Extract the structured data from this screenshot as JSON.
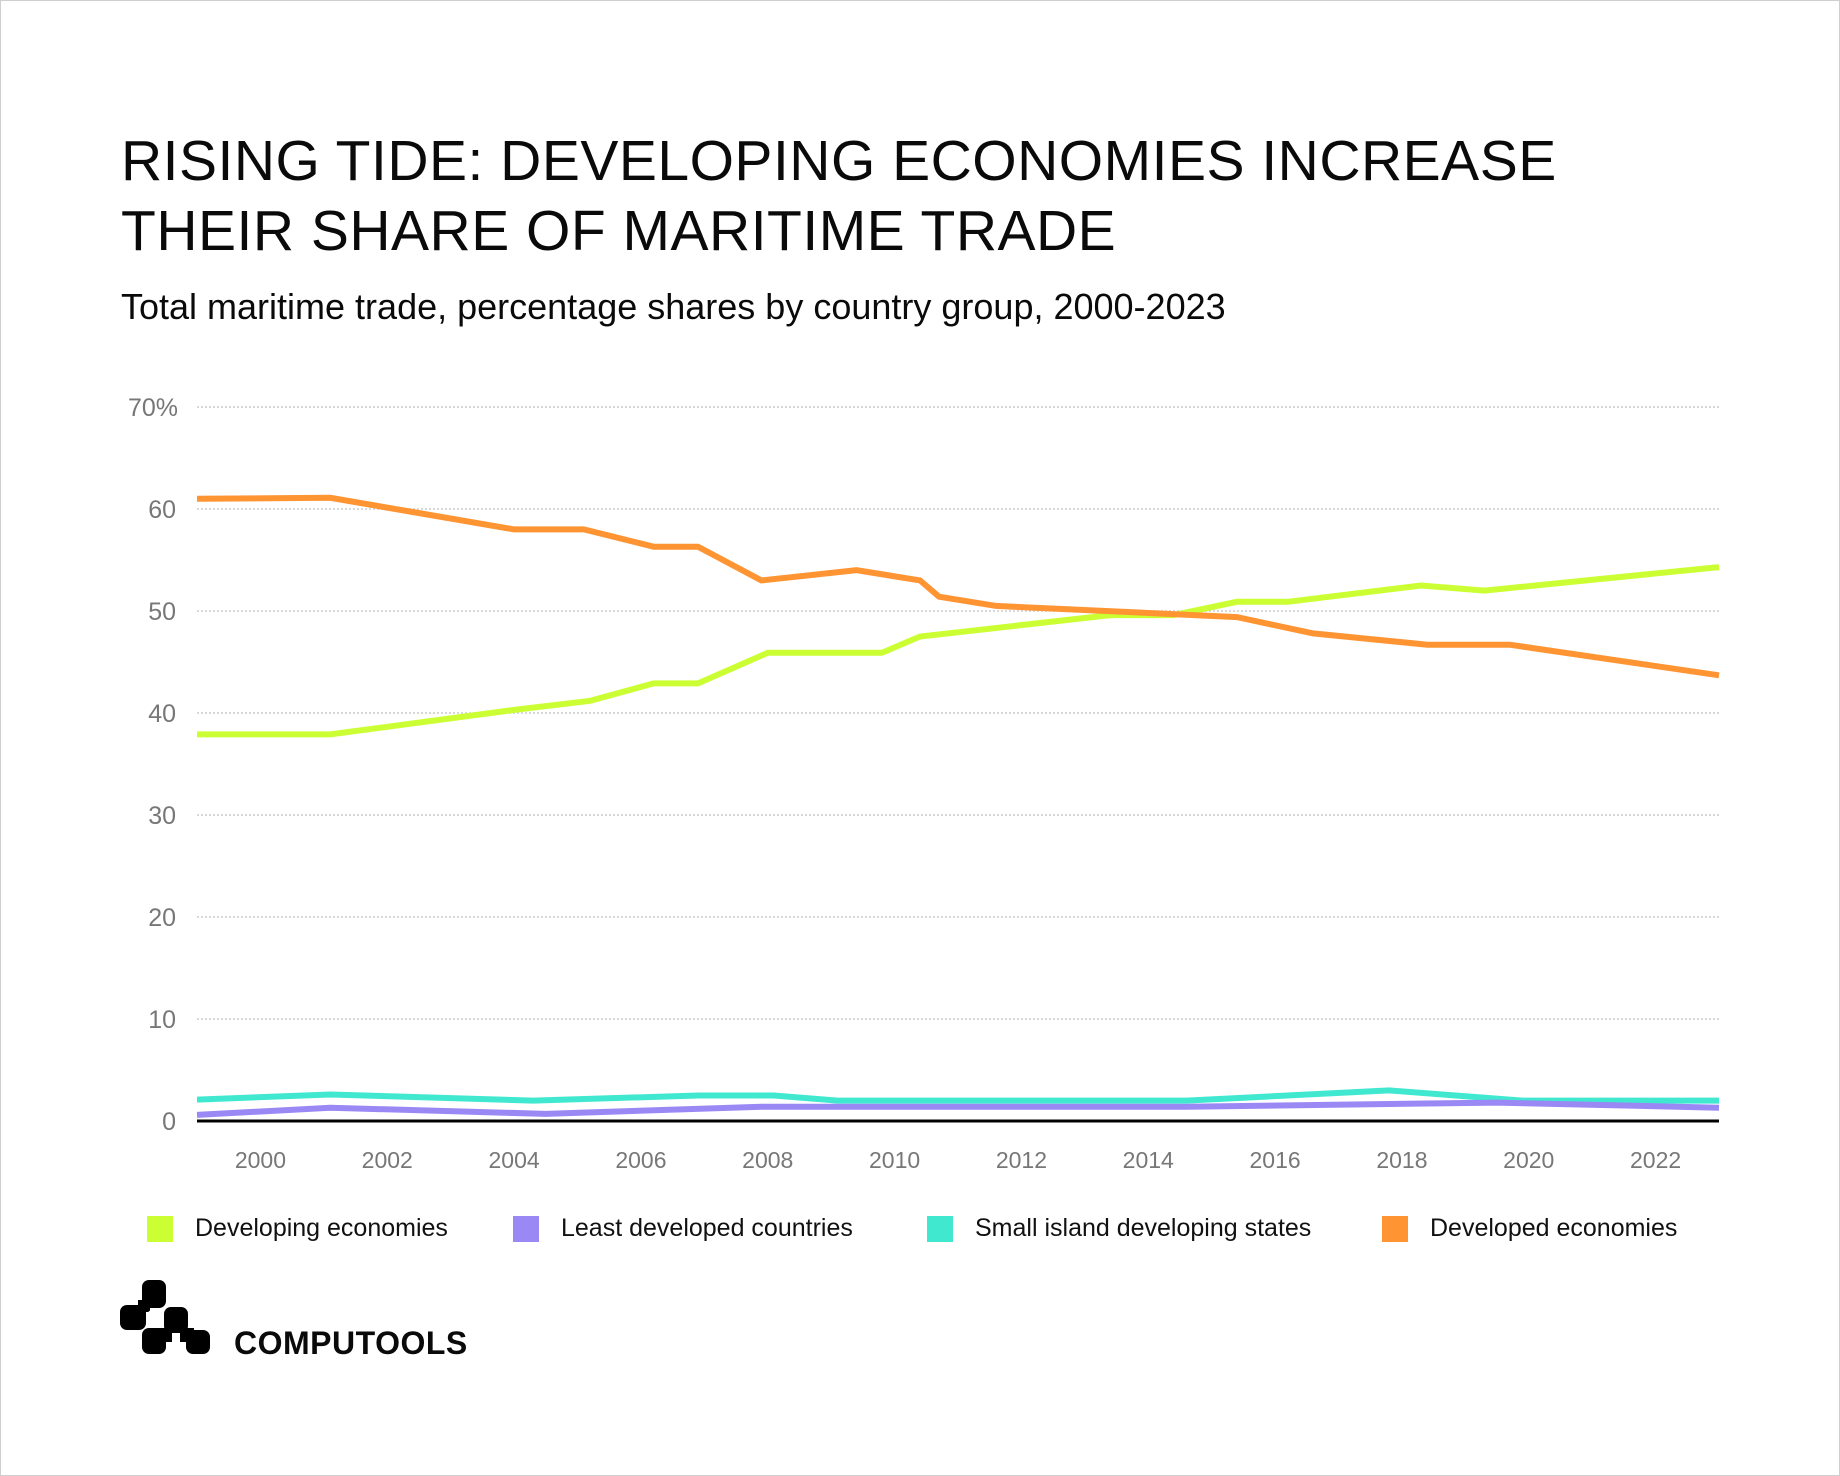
{
  "title": "RISING TIDE: DEVELOPING ECONOMIES INCREASE THEIR SHARE OF MARITIME TRADE",
  "subtitle": "Total maritime trade, percentage shares by country group, 2000-2023",
  "brand": "COMPUTOOLS",
  "chart_data": {
    "type": "line",
    "title": "RISING TIDE: DEVELOPING ECONOMIES INCREASE THEIR SHARE OF MARITIME TRADE",
    "subtitle": "Total maritime trade, percentage shares by country group, 2000-2023",
    "xlabel": "",
    "ylabel": "",
    "xlim": [
      1999,
      2023
    ],
    "ylim": [
      0,
      70
    ],
    "x_ticks": [
      "2000",
      "2002",
      "2004",
      "2006",
      "2008",
      "2010",
      "2012",
      "2014",
      "2016",
      "2018",
      "2020",
      "2022"
    ],
    "y_ticks": [
      {
        "v": 0,
        "label": "0"
      },
      {
        "v": 10,
        "label": "10"
      },
      {
        "v": 20,
        "label": "20"
      },
      {
        "v": 30,
        "label": "30"
      },
      {
        "v": 40,
        "label": "40"
      },
      {
        "v": 50,
        "label": "50"
      },
      {
        "v": 60,
        "label": "60"
      },
      {
        "v": 70,
        "label": "70%"
      }
    ],
    "grid": "horizontal dotted",
    "legend_position": "bottom",
    "series": [
      {
        "name": "Developing economies",
        "color": "#ccff33",
        "x": [
          1999,
          2001.1,
          2004,
          2005.2,
          2006.2,
          2006.9,
          2008,
          2009.8,
          2010.4,
          2013.4,
          2014.4,
          2015.4,
          2016.2,
          2018.3,
          2019.3,
          2023
        ],
        "y": [
          37.9,
          37.9,
          40.3,
          41.2,
          42.9,
          42.9,
          45.9,
          45.9,
          47.5,
          49.6,
          49.6,
          50.9,
          50.9,
          52.5,
          52.0,
          54.3
        ]
      },
      {
        "name": "Least developed countries",
        "color": "#9a88f5",
        "x": [
          1999,
          2001.1,
          2004.5,
          2007.9,
          2014.6,
          2019.5,
          2023
        ],
        "y": [
          0.6,
          1.3,
          0.7,
          1.4,
          1.4,
          1.8,
          1.3
        ]
      },
      {
        "name": "Small island developing states",
        "color": "#40e8d0",
        "x": [
          1999,
          2001.1,
          2004.3,
          2006.9,
          2008.1,
          2009.1,
          2014.6,
          2017.8,
          2019.9,
          2023
        ],
        "y": [
          2.1,
          2.6,
          2.0,
          2.5,
          2.5,
          2.0,
          2.0,
          3.0,
          2.0,
          2.0
        ]
      },
      {
        "name": "Developed economies",
        "color": "#ff9433",
        "x": [
          1999,
          2001.1,
          2004,
          2005.1,
          2006.2,
          2006.9,
          2007.9,
          2009.4,
          2010.4,
          2010.7,
          2011.6,
          2015.4,
          2016.6,
          2018.4,
          2019.7,
          2023
        ],
        "y": [
          61.0,
          61.1,
          58.0,
          58.0,
          56.3,
          56.3,
          53.0,
          54.0,
          53.0,
          51.4,
          50.5,
          49.4,
          47.8,
          46.7,
          46.7,
          43.7
        ]
      }
    ]
  }
}
